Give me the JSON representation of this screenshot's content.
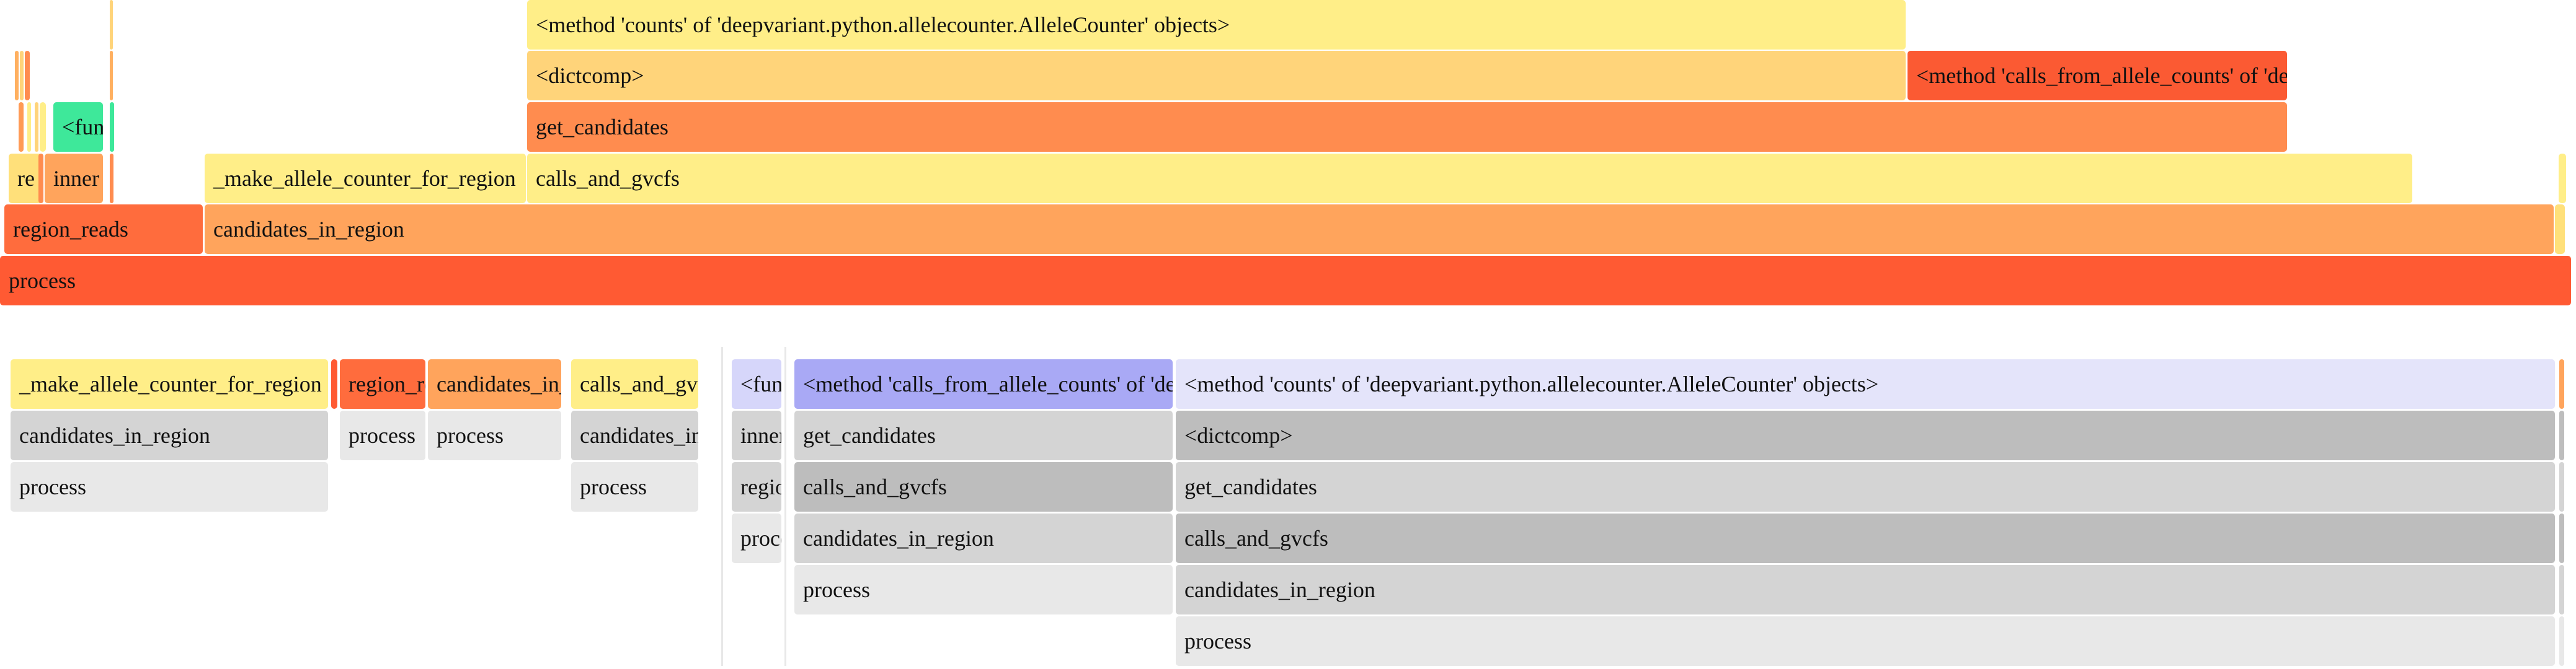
{
  "top_flame": {
    "frames": [
      {
        "name": "frame-process",
        "label": "process",
        "color": "#ff5a33"
      },
      {
        "name": "frame-region-reads",
        "label": "region_reads",
        "color": "#ff6c3d"
      },
      {
        "name": "frame-candidates-in-region",
        "label": "candidates_in_region",
        "color": "#ffa45c"
      },
      {
        "name": "frame-re",
        "label": "re",
        "color": "#ffe07a"
      },
      {
        "name": "frame-inner",
        "label": "inner",
        "color": "#ffa45c"
      },
      {
        "name": "frame-make-allele-counter",
        "label": "_make_allele_counter_for_region",
        "color": "#ffee88"
      },
      {
        "name": "frame-calls-and-gvcfs",
        "label": "calls_and_gvcfs",
        "color": "#ffee88"
      },
      {
        "name": "frame-function",
        "label": "<function",
        "color": "#3ee89a"
      },
      {
        "name": "frame-get-candidates",
        "label": "get_candidates",
        "color": "#ff8c4f"
      },
      {
        "name": "frame-dictcomp",
        "label": "<dictcomp>",
        "color": "#ffd47a"
      },
      {
        "name": "frame-calls-from-allele-counts",
        "label": "<method 'calls_from_allele_counts' of 'deepvariant.python.variant_calling.VariantCaller' objects>",
        "color": "#fb5a33"
      },
      {
        "name": "frame-method-counts",
        "label": "<method 'counts' of 'deepvariant.python.allelecounter.AlleleCounter' objects>",
        "color": "#ffee88"
      },
      {
        "name": "frame-sliver-1",
        "label": "",
        "color": "#ffb060"
      },
      {
        "name": "frame-sliver-2",
        "label": "",
        "color": "#ffd47a"
      },
      {
        "name": "frame-sliver-3",
        "label": "",
        "color": "#ff8c4f"
      },
      {
        "name": "frame-sliver-4",
        "label": "",
        "color": "#ffee88"
      },
      {
        "name": "frame-sliver-5",
        "label": "",
        "color": "#ff9a55"
      },
      {
        "name": "frame-sliver-6",
        "label": "",
        "color": "#ffd47a"
      },
      {
        "name": "frame-sliver-7",
        "label": "",
        "color": "#ffee88"
      },
      {
        "name": "frame-sliver-8",
        "label": "",
        "color": "#ff8c4f"
      },
      {
        "name": "frame-sliver-9",
        "label": "",
        "color": "#3ee89a"
      },
      {
        "name": "frame-sliver-10",
        "label": "",
        "color": "#ffb060"
      },
      {
        "name": "frame-sliver-11",
        "label": "",
        "color": "#ff8c4f"
      },
      {
        "name": "frame-sliver-12",
        "label": "",
        "color": "#ffd47a"
      },
      {
        "name": "frame-sliver-13",
        "label": "",
        "color": "#ffe07a"
      },
      {
        "name": "frame-sliver-14",
        "label": "",
        "color": "#ffee88"
      }
    ]
  },
  "bottom_flame": {
    "frames": [
      {
        "name": "icicle-make-allele-counter",
        "label": "_make_allele_counter_for_region",
        "color": "#ffee88"
      },
      {
        "name": "icicle-candidates-in-region-1",
        "label": "candidates_in_region",
        "color": "#d4d4d4"
      },
      {
        "name": "icicle-process-1",
        "label": "process",
        "color": "#e8e8e8"
      },
      {
        "name": "icicle-sliver-red",
        "label": "",
        "color": "#ff5a33"
      },
      {
        "name": "icicle-region-reads",
        "label": "region_reads",
        "color": "#ff6c3d"
      },
      {
        "name": "icicle-process-2",
        "label": "process",
        "color": "#e8e8e8"
      },
      {
        "name": "icicle-candidates-in-region-2",
        "label": "candidates_in_region",
        "color": "#ffa45c"
      },
      {
        "name": "icicle-process-3",
        "label": "process",
        "color": "#e8e8e8"
      },
      {
        "name": "icicle-calls-and-gvcfs-1",
        "label": "calls_and_gvcfs",
        "color": "#ffee88"
      },
      {
        "name": "icicle-candidates-in-region-3",
        "label": "candidates_in_region",
        "color": "#d4d4d4"
      },
      {
        "name": "icicle-process-4",
        "label": "process",
        "color": "#e8e8e8"
      },
      {
        "name": "icicle-function",
        "label": "<function",
        "color": "#d6d6fa"
      },
      {
        "name": "icicle-inner",
        "label": "inner",
        "color": "#d4d4d4"
      },
      {
        "name": "icicle-region-reads-2",
        "label": "region_reads",
        "color": "#d4d4d4"
      },
      {
        "name": "icicle-process-5",
        "label": "process",
        "color": "#e8e8e8"
      },
      {
        "name": "icicle-calls-from-allele-counts",
        "label": "<method 'calls_from_allele_counts' of 'deepvariant.python.variant_calling.VariantCaller' objects>",
        "color": "#a9a9f5"
      },
      {
        "name": "icicle-get-candidates-1",
        "label": "get_candidates",
        "color": "#d4d4d4"
      },
      {
        "name": "icicle-calls-and-gvcfs-2",
        "label": "calls_and_gvcfs",
        "color": "#bdbdbd"
      },
      {
        "name": "icicle-candidates-in-region-4",
        "label": "candidates_in_region",
        "color": "#d4d4d4"
      },
      {
        "name": "icicle-process-6",
        "label": "process",
        "color": "#e8e8e8"
      },
      {
        "name": "icicle-method-counts",
        "label": "<method 'counts' of 'deepvariant.python.allelecounter.AlleleCounter' objects>",
        "color": "#e4e4fa"
      },
      {
        "name": "icicle-dictcomp",
        "label": "<dictcomp>",
        "color": "#bdbdbd"
      },
      {
        "name": "icicle-get-candidates-2",
        "label": "get_candidates",
        "color": "#d4d4d4"
      },
      {
        "name": "icicle-calls-and-gvcfs-3",
        "label": "calls_and_gvcfs",
        "color": "#bdbdbd"
      },
      {
        "name": "icicle-candidates-in-region-5",
        "label": "candidates_in_region",
        "color": "#d4d4d4"
      },
      {
        "name": "icicle-process-7",
        "label": "process",
        "color": "#e8e8e8"
      },
      {
        "name": "icicle-sliver-1",
        "label": "",
        "color": "#ffa45c"
      },
      {
        "name": "icicle-sliver-2",
        "label": "",
        "color": "#bdbdbd"
      },
      {
        "name": "icicle-sliver-3",
        "label": "",
        "color": "#d4d4d4"
      },
      {
        "name": "icicle-sliver-4",
        "label": "",
        "color": "#bdbdbd"
      },
      {
        "name": "icicle-sliver-5",
        "label": "",
        "color": "#d4d4d4"
      },
      {
        "name": "icicle-sliver-6",
        "label": "",
        "color": "#e8e8e8"
      }
    ]
  }
}
